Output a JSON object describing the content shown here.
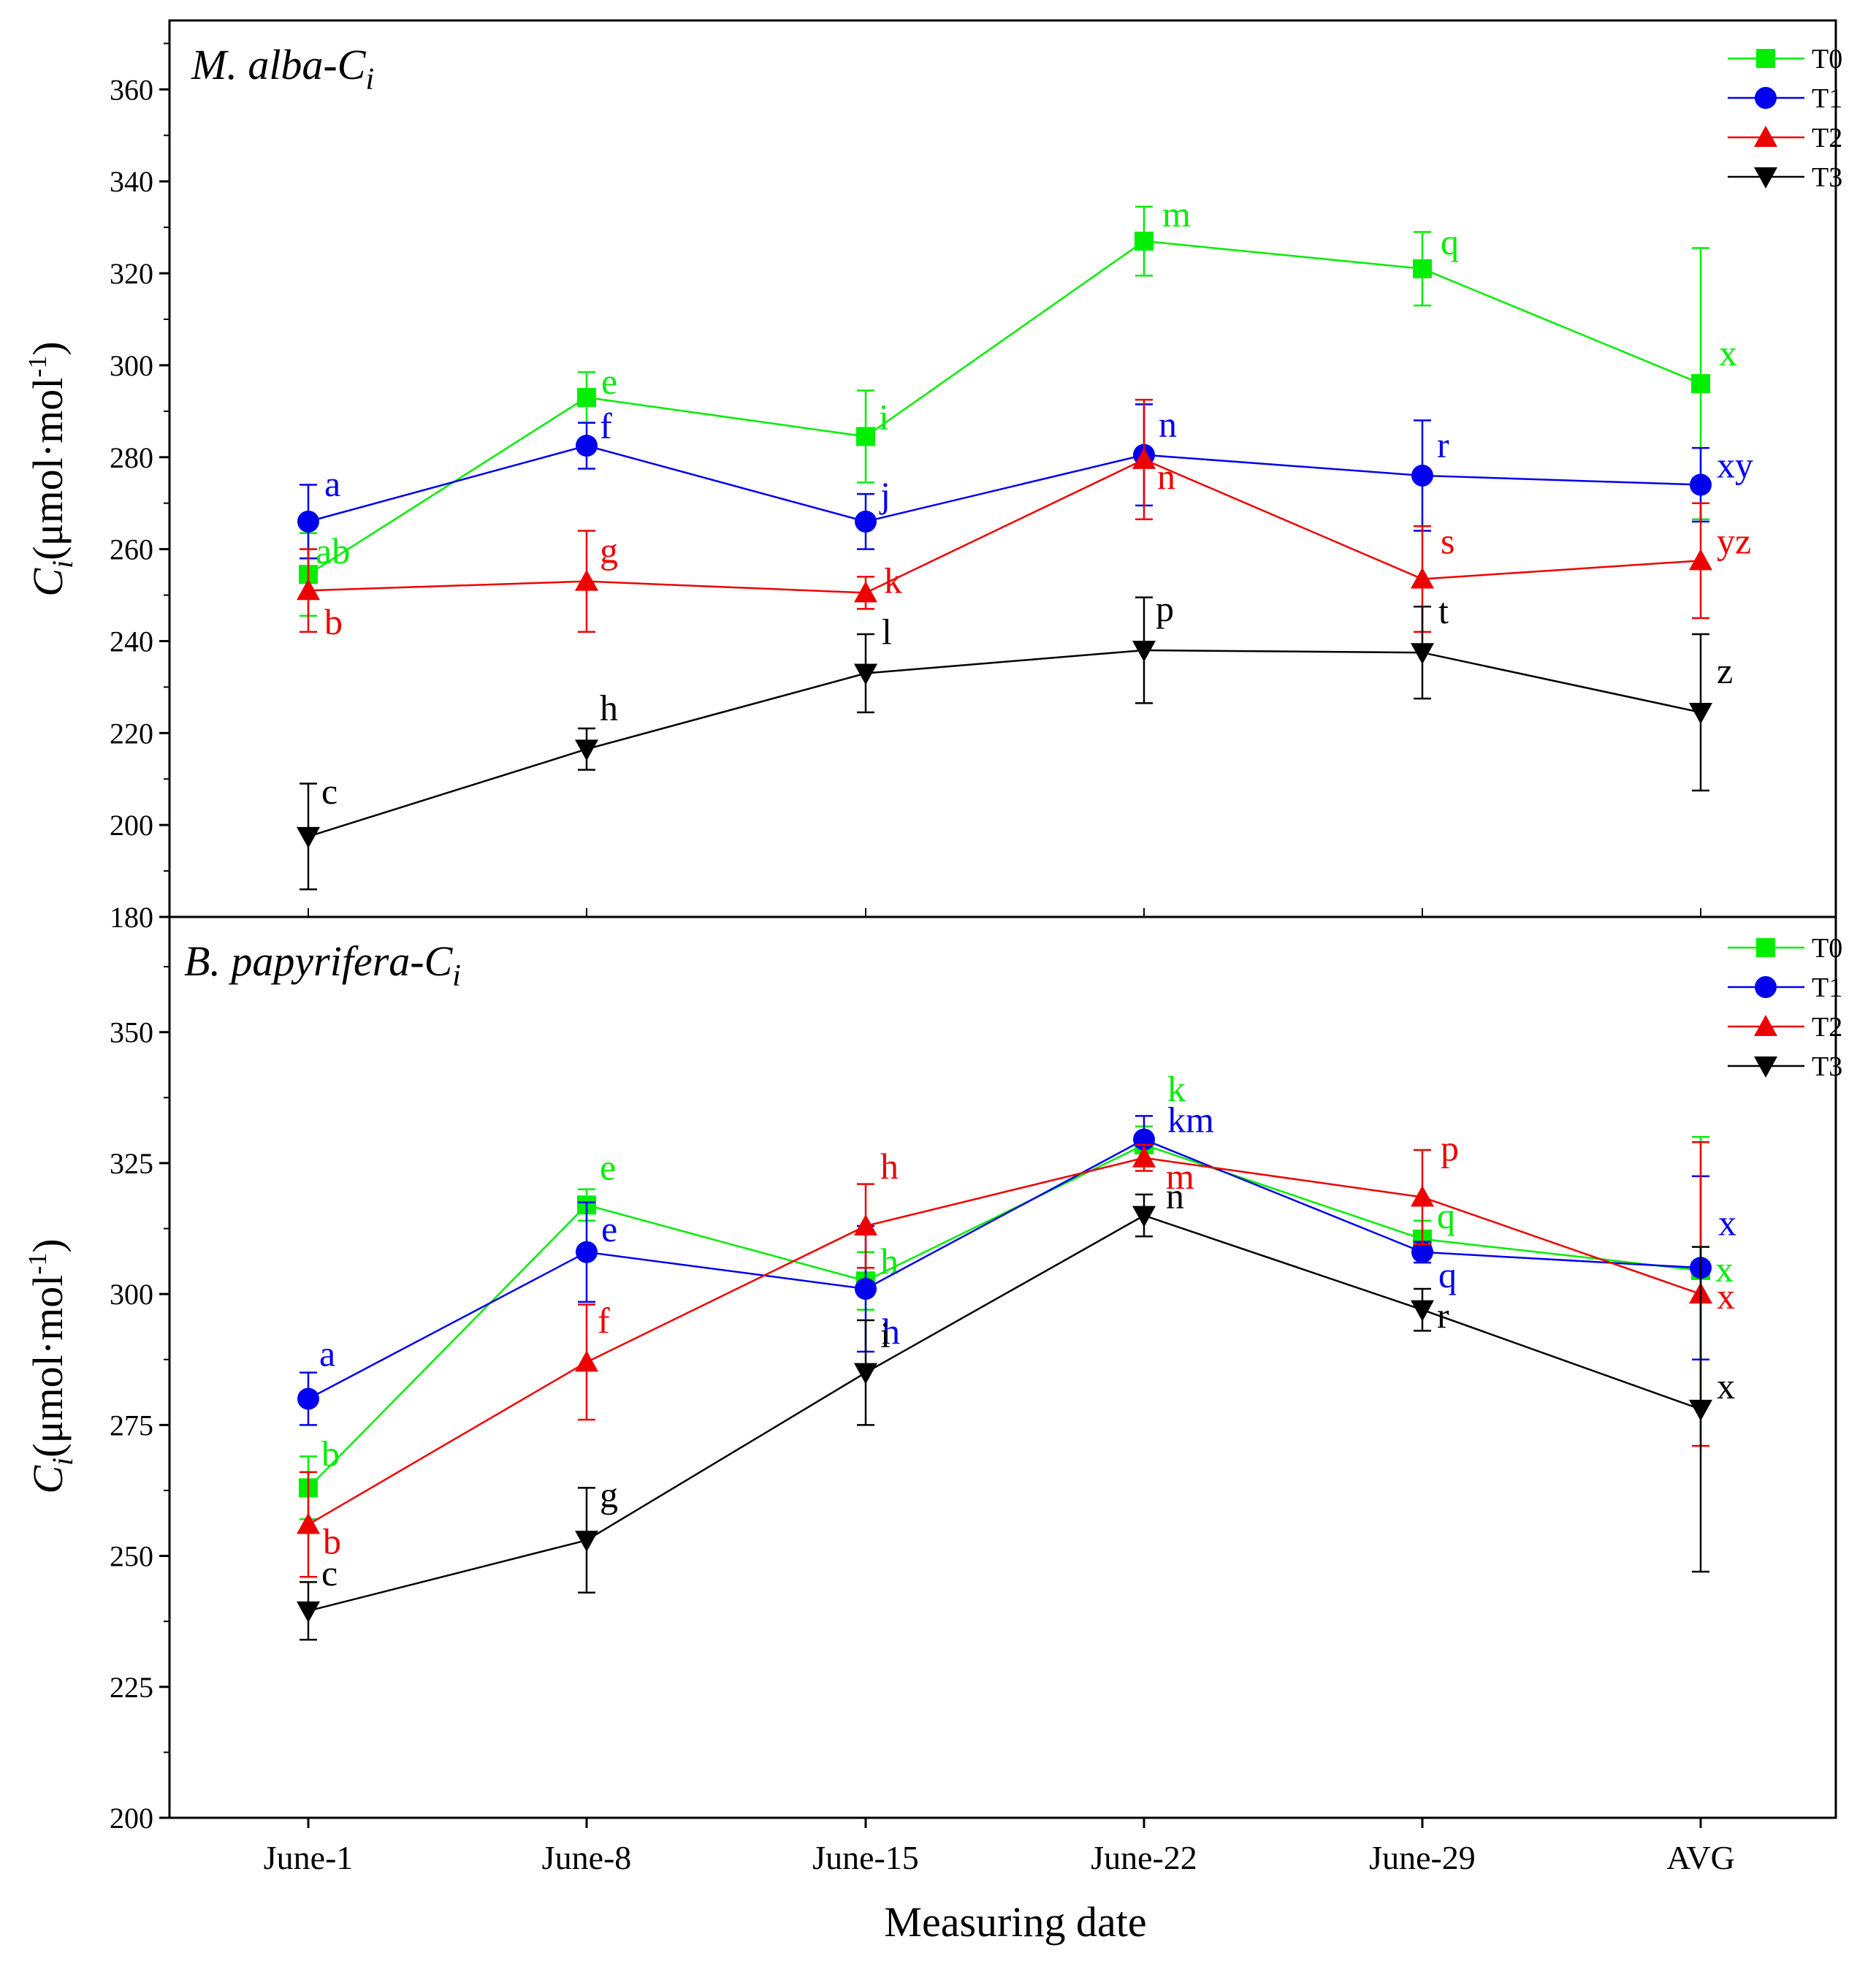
{
  "figure": {
    "xlabel": "Measuring date"
  },
  "chart_data": [
    {
      "type": "line",
      "title": "M. alba-C",
      "title_subscript": "i",
      "ylabel": "C",
      "ylabel_subscript": "i",
      "ylabel_unit": "(μmol·mol",
      "ylabel_unit_sup": "-1",
      "ylabel_unit_end": ")",
      "ylim": [
        180,
        375
      ],
      "yticks": [
        180,
        200,
        220,
        240,
        260,
        280,
        300,
        320,
        340,
        360
      ],
      "categories": [
        "June-1",
        "June-8",
        "June-15",
        "June-22",
        "June-29",
        "AVG"
      ],
      "legend_position": "top-right",
      "series": [
        {
          "name": "T0",
          "color": "#00ee00",
          "marker": "square",
          "values": [
            254.5,
            293,
            284.5,
            327,
            321,
            296
          ],
          "errors": [
            9,
            5.5,
            10,
            7.5,
            8,
            29.5
          ],
          "letters": [
            "ab",
            "e",
            "i",
            "m",
            "q",
            "x"
          ]
        },
        {
          "name": "T1",
          "color": "#0000ee",
          "marker": "circle",
          "values": [
            266,
            282.5,
            266,
            280.5,
            276,
            274
          ],
          "errors": [
            8,
            5,
            6,
            11,
            12,
            8
          ],
          "letters": [
            "a",
            "f",
            "j",
            "n",
            "r",
            "xy"
          ]
        },
        {
          "name": "T2",
          "color": "#ee0000",
          "marker": "triangle-up",
          "values": [
            251,
            253,
            250.5,
            279.5,
            253.5,
            257.5
          ],
          "errors": [
            9,
            11,
            3.5,
            13,
            11.5,
            12.5
          ],
          "letters": [
            "b",
            "g",
            "k",
            "n",
            "s",
            "yz"
          ]
        },
        {
          "name": "T3",
          "color": "#000000",
          "marker": "triangle-down",
          "values": [
            197.5,
            216.5,
            233,
            238,
            237.5,
            224.5
          ],
          "errors": [
            11.5,
            4.5,
            8.5,
            11.5,
            10,
            17
          ],
          "letters": [
            "c",
            "h",
            "l",
            "p",
            "t",
            "z"
          ]
        }
      ]
    },
    {
      "type": "line",
      "title": "B. papyrifera-C",
      "title_subscript": "i",
      "ylabel": "C",
      "ylabel_subscript": "i",
      "ylabel_unit": "(μmol·mol",
      "ylabel_unit_sup": "-1",
      "ylabel_unit_end": ")",
      "ylim": [
        200,
        372
      ],
      "yticks": [
        200,
        225,
        250,
        275,
        300,
        325,
        350
      ],
      "categories": [
        "June-1",
        "June-8",
        "June-15",
        "June-22",
        "June-29",
        "AVG"
      ],
      "legend_position": "top-right",
      "series": [
        {
          "name": "T0",
          "color": "#00ee00",
          "marker": "square",
          "values": [
            263,
            317,
            302.5,
            328.5,
            310.5,
            304.5
          ],
          "errors": [
            6,
            3,
            5.5,
            3.5,
            3.5,
            25.5
          ],
          "letters": [
            "b",
            "e",
            "h",
            "k",
            "q",
            "x"
          ]
        },
        {
          "name": "T1",
          "color": "#0000ee",
          "marker": "circle",
          "values": [
            280,
            308,
            301,
            329.5,
            308,
            305
          ],
          "errors": [
            5,
            9.5,
            12,
            4.5,
            2,
            17.5
          ],
          "letters": [
            "a",
            "e",
            "h",
            "km",
            "q",
            "x"
          ]
        },
        {
          "name": "T2",
          "color": "#ee0000",
          "marker": "triangle-up",
          "values": [
            256,
            287,
            313,
            326,
            318.5,
            300
          ],
          "errors": [
            10,
            11,
            8,
            2.5,
            9,
            29
          ],
          "letters": [
            "b",
            "f",
            "h",
            "m",
            "p",
            "x"
          ]
        },
        {
          "name": "T3",
          "color": "#000000",
          "marker": "triangle-down",
          "values": [
            239.5,
            253,
            285,
            315,
            297,
            278
          ],
          "errors": [
            5.5,
            10,
            10,
            4,
            4,
            31
          ],
          "letters": [
            "c",
            "g",
            "i",
            "n",
            "r",
            "x"
          ]
        }
      ]
    }
  ]
}
